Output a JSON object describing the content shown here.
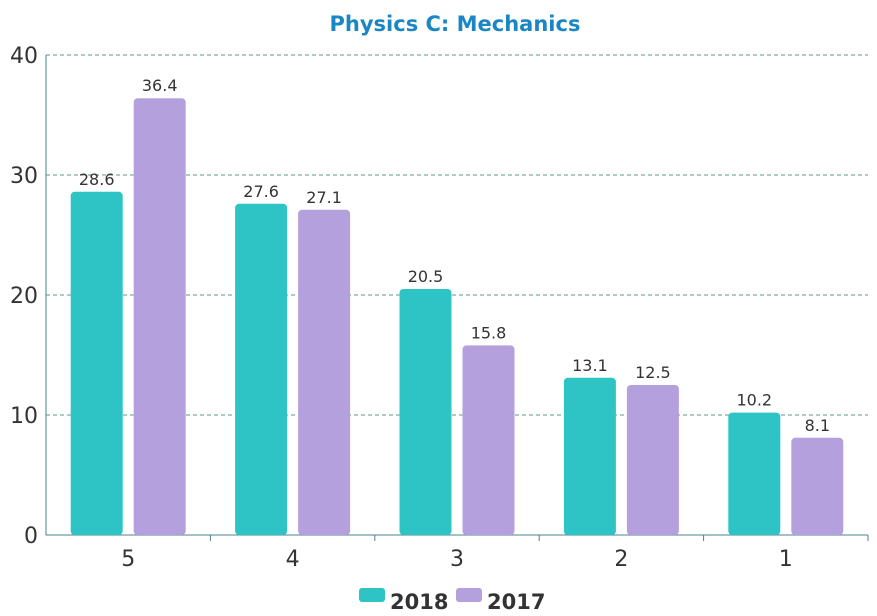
{
  "chart_data": {
    "type": "bar",
    "title": "Physics C: Mechanics",
    "xlabel": "",
    "ylabel": "",
    "categories": [
      "5",
      "4",
      "3",
      "2",
      "1"
    ],
    "series": [
      {
        "name": "2018",
        "values": [
          28.6,
          27.6,
          20.5,
          13.1,
          10.2
        ],
        "color": "#2ec4c6"
      },
      {
        "name": "2017",
        "values": [
          36.4,
          27.1,
          15.8,
          12.5,
          8.1
        ],
        "color": "#b5a0de"
      }
    ],
    "ylim": [
      0,
      40
    ],
    "yticks": [
      "0",
      "10",
      "20",
      "30",
      "40"
    ],
    "data_labels": [
      [
        "28.6",
        "27.6",
        "20.5",
        "13.1",
        "10.2"
      ],
      [
        "36.4",
        "27.1",
        "15.8",
        "12.5",
        "8.1"
      ]
    ],
    "grid": true,
    "legend_position": "bottom-center",
    "colors": {
      "title": "#1b86c4",
      "grid": "#5a9a8a",
      "axis": "#4a8090"
    }
  }
}
